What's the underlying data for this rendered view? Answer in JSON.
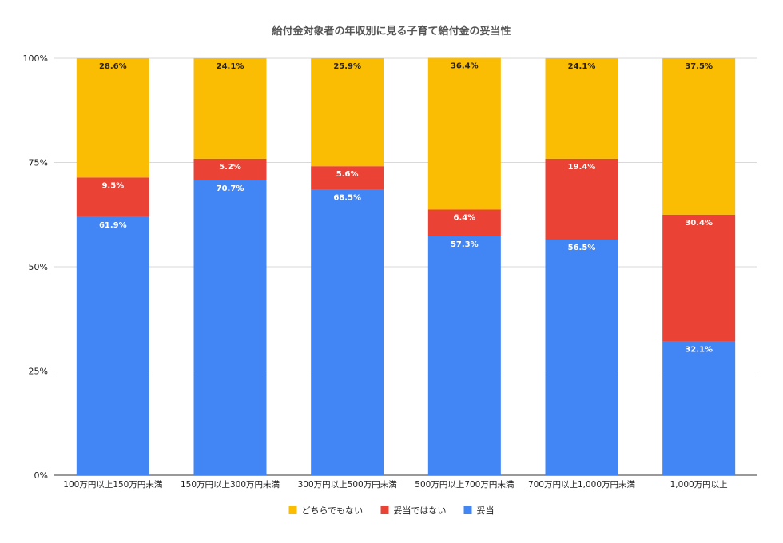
{
  "chart_data": {
    "type": "bar",
    "stacked": true,
    "title": "給付金対象者の年収別に見る子育て給付金の妥当性",
    "xlabel": "",
    "ylabel": "",
    "ylim": [
      0,
      100
    ],
    "y_ticks": [
      "0%",
      "25%",
      "50%",
      "75%",
      "100%"
    ],
    "y_tick_values": [
      0,
      25,
      50,
      75,
      100
    ],
    "grid": true,
    "legend_position": "bottom",
    "categories": [
      "100万円以上150万円未満",
      "150万円以上300万円未満",
      "300万円以上500万円未満",
      "500万円以上700万円未満",
      "700万円以上1,000万円未満",
      "1,000万円以上"
    ],
    "series": [
      {
        "name": "妥当",
        "color": "#4285f4",
        "label_color": "#ffffff",
        "values": [
          61.9,
          70.7,
          68.5,
          57.3,
          56.5,
          32.1
        ],
        "labels": [
          "61.9%",
          "70.7%",
          "68.5%",
          "57.3%",
          "56.5%",
          "32.1%"
        ]
      },
      {
        "name": "妥当ではない",
        "color": "#ea4335",
        "label_color": "#ffffff",
        "values": [
          9.5,
          5.2,
          5.6,
          6.4,
          19.4,
          30.4
        ],
        "labels": [
          "9.5%",
          "5.2%",
          "5.6%",
          "6.4%",
          "19.4%",
          "30.4%"
        ]
      },
      {
        "name": "どちらでもない",
        "color": "#fbbc04",
        "label_color": "#222222",
        "values": [
          28.6,
          24.1,
          25.9,
          36.4,
          24.1,
          37.5
        ],
        "labels": [
          "28.6%",
          "24.1%",
          "25.9%",
          "36.4%",
          "24.1%",
          "37.5%"
        ]
      }
    ],
    "legend_order": [
      "どちらでもない",
      "妥当ではない",
      "妥当"
    ]
  }
}
